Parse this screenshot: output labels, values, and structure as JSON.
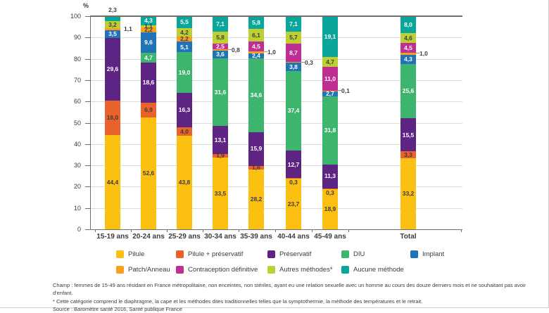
{
  "chart_data": {
    "type": "bar",
    "stacked": true,
    "title": "",
    "unit_label": "%",
    "ylim": [
      0,
      100
    ],
    "yticks": [
      0,
      10,
      20,
      30,
      40,
      50,
      60,
      70,
      80,
      90,
      100
    ],
    "grid": "horizontal",
    "legend_position": "bottom",
    "categories": [
      "15-19 ans",
      "20-24 ans",
      "25-29 ans",
      "30-34 ans",
      "35-39 ans",
      "40-44 ans",
      "45-49 ans",
      "Total"
    ],
    "series": [
      {
        "name": "Pilule",
        "color": "#FBC011",
        "points": [
          {
            "v": 44.4,
            "t": "44,4",
            "pos": "in",
            "c": "dark"
          },
          {
            "v": 52.6,
            "t": "52,6",
            "pos": "in",
            "c": "dark"
          },
          {
            "v": 43.8,
            "t": "43,8",
            "pos": "in",
            "c": "dark"
          },
          {
            "v": 33.5,
            "t": "33,5",
            "pos": "in",
            "c": "dark"
          },
          {
            "v": 28.2,
            "t": "28,2",
            "pos": "in",
            "c": "dark"
          },
          {
            "v": 23.7,
            "t": "23,7",
            "pos": "in",
            "c": "dark"
          },
          {
            "v": 18.9,
            "t": "18,9",
            "pos": "in",
            "c": "dark"
          },
          {
            "v": 33.2,
            "t": "33,2",
            "pos": "in",
            "c": "dark"
          }
        ]
      },
      {
        "name": "Pilule + préservatif",
        "color": "#E9612B",
        "points": [
          {
            "v": 16.0,
            "t": "16,0",
            "pos": "in",
            "c": "dark"
          },
          {
            "v": 6.9,
            "t": "6,9",
            "pos": "in",
            "c": "dark"
          },
          {
            "v": 4.0,
            "t": "4,0",
            "pos": "in",
            "c": "dark"
          },
          {
            "v": 1.9,
            "t": "1,9",
            "pos": "in",
            "c": "dark"
          },
          {
            "v": 1.6,
            "t": "1,6",
            "pos": "in",
            "c": "dark"
          },
          {
            "v": 0.3,
            "t": "0,3",
            "pos": "below",
            "c": "dark"
          },
          {
            "v": 0.3,
            "t": "0,3",
            "pos": "below",
            "c": "dark"
          },
          {
            "v": 3.3,
            "t": "3,3",
            "pos": "in",
            "c": "dark"
          }
        ]
      },
      {
        "name": "Préservatif",
        "color": "#5E2483",
        "points": [
          {
            "v": 29.6,
            "t": "29,6",
            "pos": "in",
            "c": "light"
          },
          {
            "v": 18.6,
            "t": "18,6",
            "pos": "in",
            "c": "light"
          },
          {
            "v": 16.3,
            "t": "16,3",
            "pos": "in",
            "c": "light"
          },
          {
            "v": 13.1,
            "t": "13,1",
            "pos": "in",
            "c": "light"
          },
          {
            "v": 15.9,
            "t": "15,9",
            "pos": "in",
            "c": "light"
          },
          {
            "v": 12.7,
            "t": "12,7",
            "pos": "in",
            "c": "light"
          },
          {
            "v": 11.3,
            "t": "11,3",
            "pos": "in",
            "c": "light"
          },
          {
            "v": 15.5,
            "t": "15,5",
            "pos": "in",
            "c": "light"
          }
        ]
      },
      {
        "name": "DIU",
        "color": "#3EB56F",
        "points": [
          {
            "v": 0,
            "t": null
          },
          {
            "v": 4.7,
            "t": "4,7",
            "pos": "in",
            "c": "light"
          },
          {
            "v": 19.0,
            "t": "19,0",
            "pos": "in",
            "c": "light"
          },
          {
            "v": 31.6,
            "t": "31,6",
            "pos": "in",
            "c": "light"
          },
          {
            "v": 34.6,
            "t": "34,6",
            "pos": "in",
            "c": "light"
          },
          {
            "v": 37.4,
            "t": "37,4",
            "pos": "in",
            "c": "light"
          },
          {
            "v": 31.8,
            "t": "31,8",
            "pos": "in",
            "c": "light"
          },
          {
            "v": 25.6,
            "t": "25,6",
            "pos": "in",
            "c": "light"
          }
        ]
      },
      {
        "name": "Implant",
        "color": "#2073B7",
        "points": [
          {
            "v": 3.5,
            "t": "3,5",
            "pos": "in",
            "c": "light"
          },
          {
            "v": 9.6,
            "t": "9,6",
            "pos": "in",
            "c": "light"
          },
          {
            "v": 5.1,
            "t": "5,1",
            "pos": "in",
            "c": "light"
          },
          {
            "v": 3.6,
            "t": "3,6",
            "pos": "in",
            "c": "light"
          },
          {
            "v": 2.4,
            "t": "2,4",
            "pos": "in",
            "c": "light"
          },
          {
            "v": 3.8,
            "t": "3,8",
            "pos": "in",
            "c": "light"
          },
          {
            "v": 2.7,
            "t": "2,7",
            "pos": "in",
            "c": "light"
          },
          {
            "v": 4.3,
            "t": "4,3",
            "pos": "in",
            "c": "light"
          }
        ]
      },
      {
        "name": "Patch/Anneau",
        "color": "#F8A01D",
        "points": [
          {
            "v": 1.1,
            "t": "1,1",
            "pos": "right",
            "c": "dark"
          },
          {
            "v": 2.2,
            "t": "2,2",
            "pos": "in",
            "c": "dark"
          },
          {
            "v": 2.2,
            "t": "2,2",
            "pos": "in",
            "c": "dark"
          },
          {
            "v": 0.8,
            "t": "0,8",
            "pos": "right-line",
            "c": "dark"
          },
          {
            "v": 1.0,
            "t": "1,0",
            "pos": "right-line",
            "c": "dark"
          },
          {
            "v": 0.3,
            "t": "0,3",
            "pos": "right-line",
            "c": "dark"
          },
          {
            "v": 0.1,
            "t": "0,1",
            "pos": "right-line",
            "c": "dark"
          },
          {
            "v": 1.0,
            "t": "1,0",
            "pos": "right-line",
            "c": "dark"
          }
        ]
      },
      {
        "name": "Contraception définitive",
        "color": "#BE2E93",
        "points": [
          {
            "v": 0,
            "t": null
          },
          {
            "v": 0,
            "t": null
          },
          {
            "v": 0,
            "t": null
          },
          {
            "v": 2.5,
            "t": "2,5",
            "pos": "in",
            "c": "light"
          },
          {
            "v": 4.5,
            "t": "4,5",
            "pos": "in",
            "c": "light"
          },
          {
            "v": 8.7,
            "t": "8,7",
            "pos": "in",
            "c": "light"
          },
          {
            "v": 11.0,
            "t": "11,0",
            "pos": "in",
            "c": "light"
          },
          {
            "v": 4.5,
            "t": "4,5",
            "pos": "in",
            "c": "light"
          }
        ]
      },
      {
        "name": "Autres méthodes*",
        "color": "#BCCF33",
        "points": [
          {
            "v": 3.2,
            "t": "3,2",
            "pos": "in",
            "c": "dark"
          },
          {
            "v": 1.1,
            "t": "1,1",
            "pos": "in",
            "c": "dark"
          },
          {
            "v": 4.2,
            "t": "4,2",
            "pos": "in",
            "c": "dark"
          },
          {
            "v": 5.8,
            "t": "5,8",
            "pos": "in",
            "c": "dark"
          },
          {
            "v": 6.1,
            "t": "6,1",
            "pos": "in",
            "c": "dark"
          },
          {
            "v": 5.7,
            "t": "5,7",
            "pos": "in",
            "c": "dark"
          },
          {
            "v": 4.7,
            "t": "4,7",
            "pos": "in",
            "c": "dark"
          },
          {
            "v": 4.6,
            "t": "4,6",
            "pos": "in",
            "c": "dark"
          }
        ]
      },
      {
        "name": "Aucune méthode",
        "color": "#0AA69C",
        "points": [
          {
            "v": 2.3,
            "t": "2,3",
            "pos": "above",
            "c": "dark"
          },
          {
            "v": 4.3,
            "t": "4,3",
            "pos": "in",
            "c": "light"
          },
          {
            "v": 5.5,
            "t": "5,5",
            "pos": "in",
            "c": "light"
          },
          {
            "v": 7.1,
            "t": "7,1",
            "pos": "in",
            "c": "light"
          },
          {
            "v": 5.8,
            "t": "5,8",
            "pos": "in",
            "c": "light"
          },
          {
            "v": 7.1,
            "t": "7,1",
            "pos": "in",
            "c": "light"
          },
          {
            "v": 19.1,
            "t": "19,1",
            "pos": "in",
            "c": "light"
          },
          {
            "v": 8.0,
            "t": "8,0",
            "pos": "in",
            "c": "light"
          }
        ]
      }
    ]
  },
  "legend": {
    "rows": [
      [
        {
          "label": "Pilule",
          "color": "#FBC011"
        },
        {
          "label": "Pilule + préservatif",
          "color": "#E9612B"
        },
        {
          "label": "Préservatif",
          "color": "#5E2483"
        },
        {
          "label": "DIU",
          "color": "#3EB56F"
        },
        {
          "label": "Implant",
          "color": "#2073B7"
        }
      ],
      [
        {
          "label": "Patch/Anneau",
          "color": "#F8A01D"
        },
        {
          "label": "Contraception définitive",
          "color": "#BE2E93"
        },
        {
          "label": "Autres méthodes*",
          "color": "#BCCF33"
        },
        {
          "label": "Aucune méthode",
          "color": "#0AA69C"
        }
      ]
    ]
  },
  "footnotes": {
    "line1": "Champ : femmes de 15-49 ans résidant en France métropolitaine, non enceintes, non stériles, ayant eu une relation sexuelle avec un homme au cours des douze derniers mois et ne souhaitant pas avoir d'enfant.",
    "line2": "* Cette catégorie comprend le diaphragme, la cape et les méthodes dites traditionnelles telles que la symptothermie, la méthode des températures et le retrait.",
    "line3": "Source : Baromètre santé 2016, Santé publique France"
  }
}
